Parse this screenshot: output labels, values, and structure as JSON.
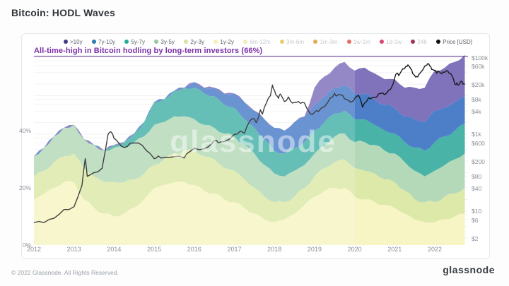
{
  "page": {
    "title": "Bitcoin: HODL Waves",
    "footer": "© 2022 Glassnode. All Rights Reserved.",
    "brand_logo": "glassnode",
    "watermark": "glassnode"
  },
  "annotation": {
    "text": "All-time-high in Bitcoin hodling by long-term investors (66%)",
    "level_pct": 66,
    "text_color": "#7b2fa8",
    "line_color": "#5b2d8f"
  },
  "legend": {
    "items": [
      {
        "label": ">10y",
        "color": "#433a84",
        "active": true
      },
      {
        "label": "7y-10y",
        "color": "#2b7bb0",
        "active": true
      },
      {
        "label": "5y-7y",
        "color": "#21ad96",
        "active": true
      },
      {
        "label": "3y-5y",
        "color": "#96c99e",
        "active": true
      },
      {
        "label": "2y-3y",
        "color": "#d3e3a1",
        "active": true
      },
      {
        "label": "1y-2y",
        "color": "#f3f0b6",
        "active": true
      },
      {
        "label": "6m-12m",
        "color": "#efe9ac",
        "active": false
      },
      {
        "label": "3m-6m",
        "color": "#e5c650",
        "active": false
      },
      {
        "label": "1m-3m",
        "color": "#df9c3a",
        "active": false
      },
      {
        "label": "1w-1m",
        "color": "#e25549",
        "active": false
      },
      {
        "label": "1d-1w",
        "color": "#cb2b57",
        "active": false
      },
      {
        "label": "24h",
        "color": "#8f1140",
        "active": false
      },
      {
        "label": "Price [USD]",
        "color": "#111111",
        "active": true
      }
    ]
  },
  "chart_data": {
    "type": "area",
    "title": "Bitcoin: HODL Waves",
    "stacking": "stacked-percent-of-supply",
    "x_ticks": [
      2012,
      2013,
      2014,
      2015,
      2016,
      2017,
      2018,
      2019,
      2020,
      2021,
      2022
    ],
    "x_range": [
      2012.0,
      2022.83
    ],
    "y_left": {
      "labels": [
        "0%",
        "20%",
        "40%"
      ],
      "values": [
        0,
        20,
        40
      ],
      "range_pct": [
        0,
        70
      ]
    },
    "y_right": {
      "scale": "log",
      "unit": "USD",
      "labels": [
        "$100k",
        "$60k",
        "$20k",
        "$8k",
        "$4k",
        "$1k",
        "$600",
        "$200",
        "$80",
        "$40",
        "$10",
        "$6",
        "$2"
      ],
      "values": [
        100000,
        60000,
        20000,
        8000,
        4000,
        1000,
        600,
        200,
        80,
        40,
        10,
        6,
        2
      ],
      "range_usd": [
        2,
        130000
      ]
    },
    "grid_usd": [
      100000,
      80000,
      60000,
      40000,
      20000,
      10000,
      8000,
      6000,
      4000,
      2000,
      1000,
      800,
      600,
      400,
      200,
      100,
      80,
      60,
      40,
      20,
      10,
      8,
      6,
      4,
      2
    ],
    "x_years": [
      2012.0,
      2012.25,
      2012.5,
      2012.75,
      2013.0,
      2013.25,
      2013.5,
      2013.75,
      2014.0,
      2014.25,
      2014.5,
      2014.75,
      2015.0,
      2015.25,
      2015.5,
      2015.75,
      2016.0,
      2016.25,
      2016.5,
      2016.75,
      2017.0,
      2017.25,
      2017.5,
      2017.75,
      2018.0,
      2018.25,
      2018.5,
      2018.75,
      2019.0,
      2019.25,
      2019.5,
      2019.75,
      2020.0,
      2020.25,
      2020.5,
      2020.75,
      2021.0,
      2021.25,
      2021.5,
      2021.75,
      2022.0,
      2022.25,
      2022.5,
      2022.75
    ],
    "series": [
      {
        "name": "1y-2y",
        "color": "#f7f5c3",
        "values": [
          16,
          18,
          20,
          22,
          22,
          16,
          13,
          11,
          10,
          11,
          13,
          16,
          20,
          21,
          22,
          22,
          21,
          19,
          18,
          16,
          15,
          13,
          11,
          9,
          8,
          9,
          11,
          14,
          17,
          19,
          20,
          20,
          17,
          16,
          15,
          14,
          13,
          11,
          9,
          8,
          8,
          9,
          10,
          11
        ]
      },
      {
        "name": "2y-3y",
        "color": "#dce9a8",
        "values": [
          8,
          8,
          9,
          9,
          10,
          11,
          11,
          11,
          12,
          11,
          10,
          9,
          8,
          9,
          10,
          11,
          12,
          12,
          12,
          11,
          11,
          10,
          9,
          8,
          7,
          6,
          6,
          6,
          7,
          8,
          9,
          10,
          10,
          10,
          10,
          9,
          9,
          8,
          7,
          7,
          7,
          8,
          8,
          9
        ]
      },
      {
        "name": "3y-5y",
        "color": "#b4d9b8",
        "values": [
          7,
          8,
          9,
          10,
          10,
          10,
          11,
          11,
          12,
          12,
          13,
          13,
          14,
          13,
          13,
          12,
          11,
          11,
          11,
          12,
          12,
          12,
          12,
          11,
          10,
          9,
          9,
          8,
          8,
          8,
          9,
          9,
          9,
          10,
          10,
          10,
          10,
          10,
          10,
          9,
          11,
          11,
          12,
          12
        ]
      },
      {
        "name": "5y-7y",
        "color": "#49b3a8",
        "values": [
          0,
          0,
          0,
          0,
          0,
          0,
          0,
          0,
          1,
          2,
          3,
          5,
          8,
          8,
          9,
          10,
          11,
          11,
          11,
          10,
          10,
          9,
          9,
          9,
          8,
          8,
          8,
          8,
          8,
          8,
          8,
          8,
          8,
          8,
          7,
          7,
          7,
          7,
          8,
          9,
          10,
          10,
          10,
          10.5
        ]
      },
      {
        "name": "7y-10y",
        "color": "#4d7fc9",
        "values": [
          0,
          0,
          0,
          0,
          0,
          0,
          0,
          0,
          0,
          0,
          0,
          0,
          0,
          0,
          0,
          0,
          2,
          2,
          3,
          4,
          5,
          6,
          6,
          7,
          8,
          8,
          9,
          9,
          9,
          9,
          9,
          9,
          9,
          9,
          9,
          9,
          9,
          9,
          10,
          10,
          11,
          10,
          10,
          9.5
        ]
      },
      {
        "name": ">10y",
        "color": "#8172bc",
        "values": [
          0,
          0,
          0,
          0,
          0,
          0,
          0,
          0,
          0,
          0,
          0,
          0,
          0,
          0,
          0,
          0,
          0,
          0,
          0,
          0,
          0,
          0,
          0,
          0,
          0,
          0,
          0,
          0,
          6,
          7,
          7,
          8,
          8,
          9,
          9,
          9,
          10,
          10,
          11,
          12,
          14,
          14,
          14,
          14.5
        ]
      }
    ],
    "price_line": {
      "name": "Price [USD]",
      "color": "#1b1b1b",
      "x": [
        2012.0,
        2012.25,
        2012.5,
        2012.75,
        2013.0,
        2013.2,
        2013.28,
        2013.33,
        2013.5,
        2013.7,
        2013.85,
        2013.92,
        2014.0,
        2014.1,
        2014.25,
        2014.4,
        2014.6,
        2014.8,
        2015.0,
        2015.1,
        2015.25,
        2015.5,
        2015.75,
        2015.85,
        2016.0,
        2016.25,
        2016.45,
        2016.5,
        2016.6,
        2016.75,
        2017.0,
        2017.15,
        2017.25,
        2017.4,
        2017.5,
        2017.55,
        2017.65,
        2017.7,
        2017.8,
        2017.9,
        2017.95,
        2018.0,
        2018.05,
        2018.1,
        2018.15,
        2018.25,
        2018.35,
        2018.45,
        2018.55,
        2018.65,
        2018.75,
        2018.85,
        2018.95,
        2019.0,
        2019.1,
        2019.25,
        2019.4,
        2019.5,
        2019.55,
        2019.65,
        2019.75,
        2019.85,
        2019.95,
        2020.0,
        2020.1,
        2020.2,
        2020.25,
        2020.35,
        2020.45,
        2020.55,
        2020.65,
        2020.75,
        2020.85,
        2020.95,
        2021.0,
        2021.05,
        2021.1,
        2021.2,
        2021.28,
        2021.33,
        2021.4,
        2021.45,
        2021.5,
        2021.55,
        2021.6,
        2021.7,
        2021.8,
        2021.85,
        2021.9,
        2021.95,
        2022.0,
        2022.05,
        2022.1,
        2022.15,
        2022.2,
        2022.3,
        2022.35,
        2022.45,
        2022.5,
        2022.55,
        2022.6,
        2022.65,
        2022.7,
        2022.75
      ],
      "usd": [
        5,
        5,
        6.5,
        11,
        13,
        47,
        230,
        80,
        100,
        130,
        1000,
        1150,
        770,
        620,
        450,
        580,
        590,
        380,
        230,
        270,
        250,
        260,
        240,
        330,
        430,
        420,
        580,
        670,
        600,
        640,
        980,
        1200,
        1050,
        2300,
        2500,
        2000,
        4300,
        3300,
        6500,
        10000,
        19000,
        14000,
        10000,
        8500,
        11000,
        7000,
        9300,
        6400,
        6700,
        6300,
        6500,
        4000,
        3300,
        3700,
        3900,
        5200,
        8800,
        11500,
        9800,
        10500,
        8300,
        7500,
        7200,
        8500,
        10200,
        5000,
        6400,
        8800,
        9100,
        9200,
        11500,
        10600,
        13800,
        19000,
        29000,
        38000,
        33000,
        50000,
        58000,
        63000,
        50000,
        37000,
        33000,
        31500,
        35000,
        47000,
        62000,
        67000,
        57000,
        48000,
        46000,
        38000,
        43000,
        39000,
        41000,
        45000,
        39000,
        30000,
        20000,
        21500,
        19000,
        23500,
        20000,
        19500
      ]
    },
    "highlight_from_year": 2020
  }
}
